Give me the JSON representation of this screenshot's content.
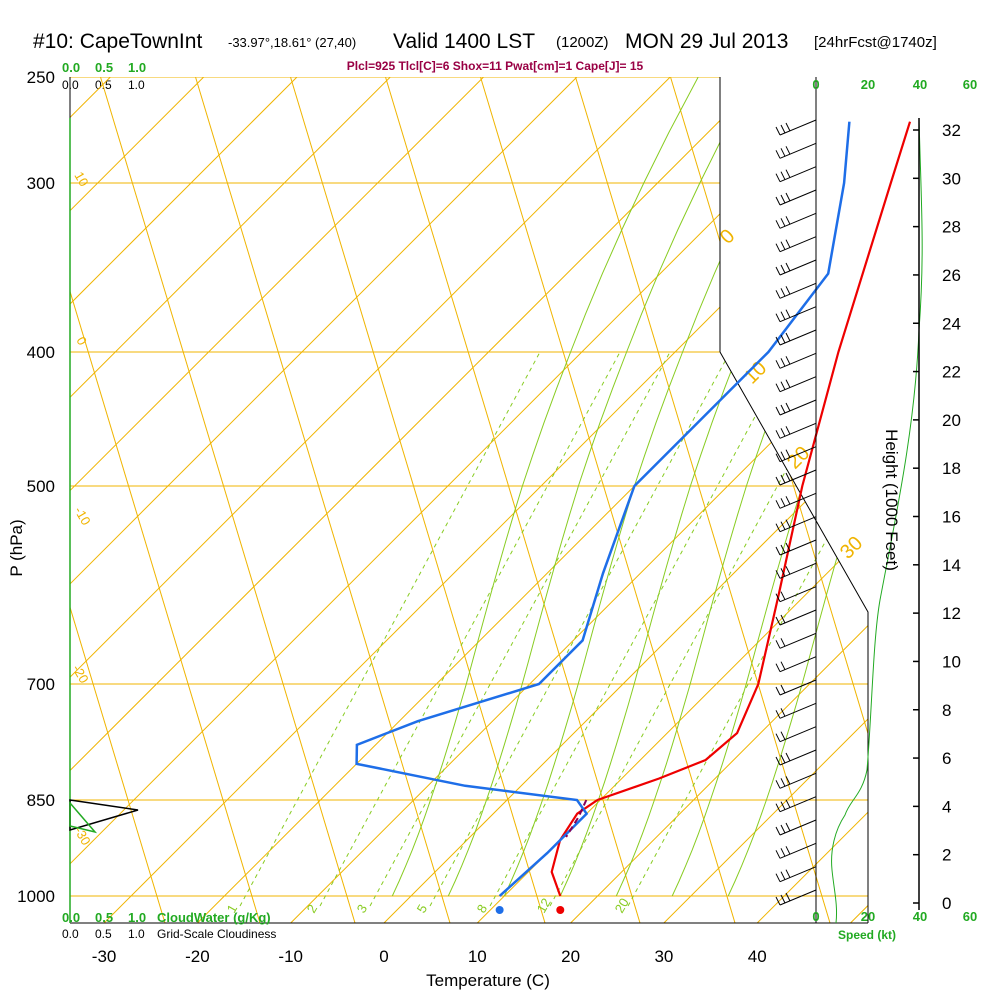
{
  "header": {
    "station": "#10: CapeTownInt",
    "coords": "-33.97°,18.61° (27,40)",
    "valid": "Valid 1400 LST",
    "zulu": "(1200Z)",
    "date": "MON 29 Jul 2013",
    "forecast": "[24hrFcst@1740z]"
  },
  "indices": "Plcl=925 Tlcl[C]=6 Shox=11 Pwat[cm]=1 Cape[J]= 15",
  "top_scales": {
    "green": [
      "0.0",
      "0.5",
      "1.0"
    ],
    "black": [
      "0.0",
      "0.5",
      "1.0"
    ]
  },
  "bottom_scales": {
    "cloudwater_ticks": [
      "0.0",
      "0.5",
      "1.0"
    ],
    "cloudwater_label": "CloudWater (g/Kg)",
    "cloudiness_ticks": [
      "0.0",
      "0.5",
      "1.0"
    ],
    "cloudiness_label": "Grid-Scale Cloudiness"
  },
  "speed_axis": {
    "ticks": [
      "0",
      "20",
      "40",
      "60"
    ],
    "label": "Speed (kt)"
  },
  "colors": {
    "temperature": "#ee0000",
    "dewpoint": "#1e6ee8",
    "isotherm": "#f0b400",
    "dry_adiabat": "#f0b400",
    "moist_adiabat": "#88cc22",
    "mixing_ratio": "#88cc22",
    "wind_speed_trace": "#22aa22",
    "parcel": "#880055",
    "indices_text": "#990044",
    "cloud_scale_text": "#22aa22"
  },
  "chart_data": {
    "type": "skew-T",
    "xlabel": "Temperature (C)",
    "ylabel": "P (hPa)",
    "y2label": "Height (1000 Feet)",
    "x_ticks": [
      "-30",
      "-20",
      "-10",
      "0",
      "10",
      "20",
      "30",
      "40"
    ],
    "p_ticks": [
      "250",
      "300",
      "400",
      "500",
      "700",
      "850",
      "1000"
    ],
    "height_ticks": [
      "0",
      "2",
      "4",
      "6",
      "8",
      "10",
      "12",
      "14",
      "16",
      "18",
      "20",
      "22",
      "24",
      "26",
      "28",
      "30",
      "32"
    ],
    "isotherm_labels": [
      "10",
      "0",
      "-10",
      "-20",
      "-30",
      "0",
      "10",
      "20",
      "30"
    ],
    "mixing_ratio_labels": [
      "1",
      "2",
      "3",
      "5",
      "8",
      "12",
      "20"
    ],
    "temperature": [
      {
        "p": 1000,
        "t": 16
      },
      {
        "p": 960,
        "t": 12.5
      },
      {
        "p": 910,
        "t": 10
      },
      {
        "p": 870,
        "t": 9
      },
      {
        "p": 850,
        "t": 9.7
      },
      {
        "p": 820,
        "t": 14
      },
      {
        "p": 795,
        "t": 17
      },
      {
        "p": 760,
        "t": 17.5
      },
      {
        "p": 700,
        "t": 14.5
      },
      {
        "p": 600,
        "t": 7
      },
      {
        "p": 500,
        "t": -2
      },
      {
        "p": 400,
        "t": -12.5
      },
      {
        "p": 300,
        "t": -25
      },
      {
        "p": 270,
        "t": -29.5
      }
    ],
    "dewpoint": [
      {
        "p": 1000,
        "t": 9.5
      },
      {
        "p": 930,
        "t": 10
      },
      {
        "p": 870,
        "t": 10
      },
      {
        "p": 850,
        "t": 7.5
      },
      {
        "p": 830,
        "t": -6
      },
      {
        "p": 800,
        "t": -20
      },
      {
        "p": 775,
        "t": -22
      },
      {
        "p": 745,
        "t": -18
      },
      {
        "p": 700,
        "t": -9
      },
      {
        "p": 650,
        "t": -9
      },
      {
        "p": 580,
        "t": -14
      },
      {
        "p": 500,
        "t": -20
      },
      {
        "p": 400,
        "t": -20
      },
      {
        "p": 350,
        "t": -22
      },
      {
        "p": 300,
        "t": -30
      },
      {
        "p": 270,
        "t": -36
      }
    ],
    "parcel_path": [
      {
        "p": 850,
        "t": 8.5
      },
      {
        "p": 875,
        "t": 9.5
      },
      {
        "p": 905,
        "t": 10.3
      }
    ],
    "surface_markers": {
      "t": 16,
      "td": 9.5,
      "p": 1000
    },
    "barbs_count": 34,
    "fill_polygon_cloud_note": "black cloudiness spike near 850 hPa"
  }
}
